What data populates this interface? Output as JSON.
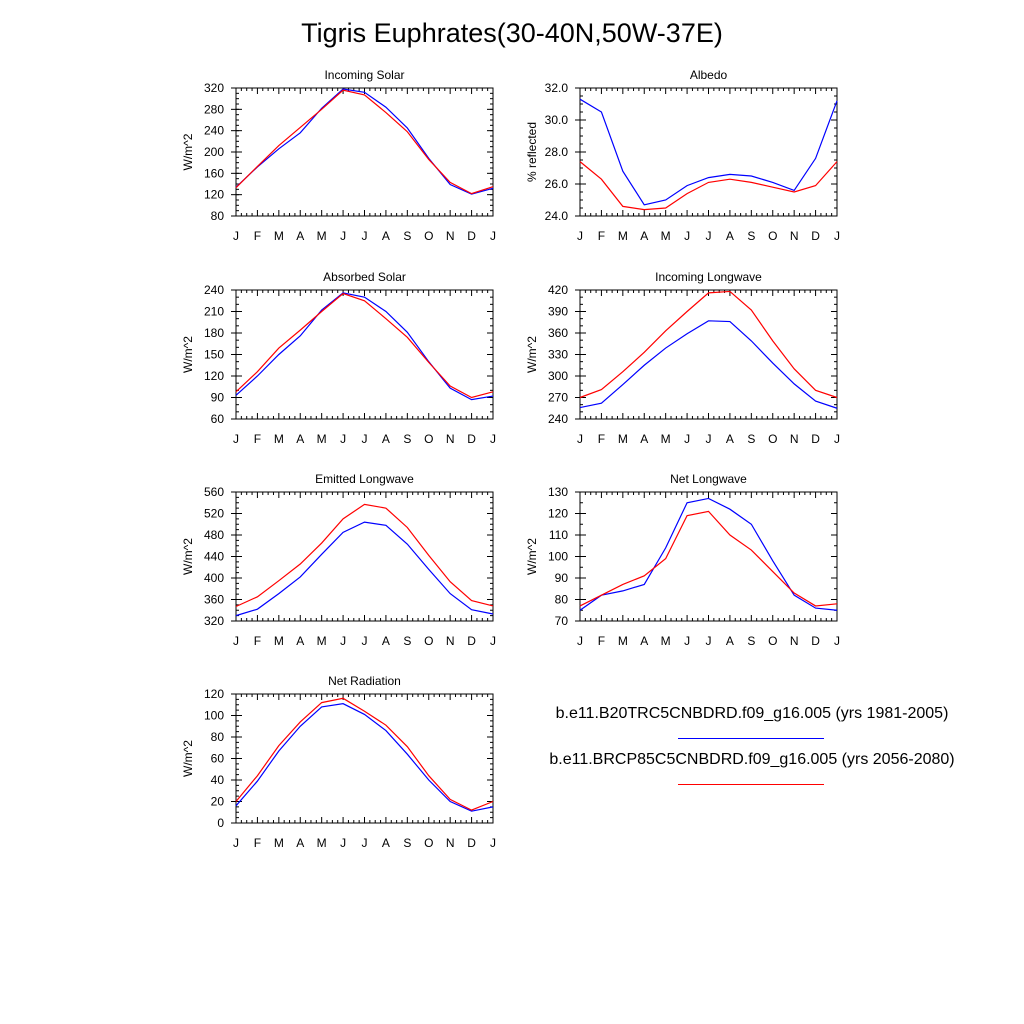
{
  "title": "Tigris Euphrates(30-40N,50W-37E)",
  "months": [
    "J",
    "F",
    "M",
    "A",
    "M",
    "J",
    "J",
    "A",
    "S",
    "O",
    "N",
    "D",
    "J"
  ],
  "legend": [
    {
      "label": "b.e11.B20TRC5CNBDRD.f09_g16.005 (yrs 1981-2005)",
      "color": "#0000ff"
    },
    {
      "label": "b.e11.BRCP85C5CNBDRD.f09_g16.005 (yrs 2056-2080)",
      "color": "#ff0000"
    }
  ],
  "chart_data": [
    {
      "type": "line",
      "title": "Incoming Solar",
      "ylabel": "W/m^2",
      "ylim": [
        80,
        320
      ],
      "yticks": [
        80,
        120,
        160,
        200,
        240,
        280,
        320
      ],
      "tick_decimals": 0,
      "minor": [
        10,
        20
      ],
      "series": [
        {
          "color": "#0000ff",
          "values": [
            134,
            172,
            206,
            236,
            282,
            318,
            312,
            284,
            245,
            188,
            139,
            121,
            132
          ]
        },
        {
          "color": "#ff0000",
          "values": [
            133,
            173,
            212,
            246,
            280,
            316,
            307,
            274,
            238,
            186,
            143,
            122,
            135
          ]
        }
      ]
    },
    {
      "type": "line",
      "title": "Albedo",
      "ylabel": "% reflected",
      "ylim": [
        24,
        32
      ],
      "yticks": [
        24,
        26,
        28,
        30,
        32
      ],
      "tick_decimals": 1,
      "minor": [
        0.5,
        1.0
      ],
      "series": [
        {
          "color": "#0000ff",
          "values": [
            31.3,
            30.5,
            26.8,
            24.7,
            25.0,
            25.9,
            26.4,
            26.6,
            26.5,
            26.1,
            25.6,
            27.6,
            31.2
          ]
        },
        {
          "color": "#ff0000",
          "values": [
            27.4,
            26.3,
            24.6,
            24.4,
            24.5,
            25.4,
            26.1,
            26.3,
            26.1,
            25.8,
            25.5,
            25.9,
            27.4
          ]
        }
      ]
    },
    {
      "type": "line",
      "title": "Absorbed Solar",
      "ylabel": "W/m^2",
      "ylim": [
        60,
        240
      ],
      "yticks": [
        60,
        90,
        120,
        150,
        180,
        210,
        240
      ],
      "tick_decimals": 0,
      "minor": [
        10,
        15
      ],
      "series": [
        {
          "color": "#0000ff",
          "values": [
            93,
            120,
            150,
            176,
            212,
            236,
            230,
            210,
            181,
            140,
            103,
            87,
            92
          ]
        },
        {
          "color": "#ff0000",
          "values": [
            98,
            126,
            159,
            184,
            210,
            235,
            225,
            200,
            174,
            139,
            106,
            90,
            98
          ]
        }
      ]
    },
    {
      "type": "line",
      "title": "Incoming Longwave",
      "ylabel": "W/m^2",
      "ylim": [
        240,
        420
      ],
      "yticks": [
        240,
        270,
        300,
        330,
        360,
        390,
        420
      ],
      "tick_decimals": 0,
      "minor": [
        10,
        15
      ],
      "series": [
        {
          "color": "#0000ff",
          "values": [
            256,
            262,
            288,
            315,
            339,
            359,
            377,
            376,
            349,
            318,
            289,
            265,
            255
          ]
        },
        {
          "color": "#ff0000",
          "values": [
            270,
            281,
            306,
            333,
            363,
            390,
            416,
            418,
            392,
            349,
            310,
            280,
            270
          ]
        }
      ]
    },
    {
      "type": "line",
      "title": "Emitted Longwave",
      "ylabel": "W/m^2",
      "ylim": [
        320,
        560
      ],
      "yticks": [
        320,
        360,
        400,
        440,
        480,
        520,
        560
      ],
      "tick_decimals": 0,
      "minor": [
        10,
        20
      ],
      "series": [
        {
          "color": "#0000ff",
          "values": [
            330,
            342,
            371,
            402,
            444,
            485,
            504,
            498,
            463,
            416,
            371,
            341,
            333
          ]
        },
        {
          "color": "#ff0000",
          "values": [
            347,
            365,
            395,
            426,
            465,
            510,
            537,
            530,
            494,
            442,
            393,
            358,
            348
          ]
        }
      ]
    },
    {
      "type": "line",
      "title": "Net Longwave",
      "ylabel": "W/m^2",
      "ylim": [
        70,
        130
      ],
      "yticks": [
        70,
        80,
        90,
        100,
        110,
        120,
        130
      ],
      "tick_decimals": 0,
      "minor": [
        5,
        5
      ],
      "series": [
        {
          "color": "#0000ff",
          "values": [
            75,
            82,
            84,
            87,
            104,
            125,
            127,
            122,
            115,
            98,
            82,
            76,
            75
          ]
        },
        {
          "color": "#ff0000",
          "values": [
            77,
            82,
            87,
            91,
            99,
            119,
            121,
            110,
            103,
            93,
            83,
            77,
            78
          ]
        }
      ]
    },
    {
      "type": "line",
      "title": "Net Radiation",
      "ylabel": "W/m^2",
      "ylim": [
        0,
        120
      ],
      "yticks": [
        0,
        20,
        40,
        60,
        80,
        100,
        120
      ],
      "tick_decimals": 0,
      "minor": [
        5,
        10
      ],
      "series": [
        {
          "color": "#0000ff",
          "values": [
            16,
            39,
            67,
            90,
            108,
            111,
            101,
            86,
            64,
            40,
            20,
            11,
            15
          ]
        },
        {
          "color": "#ff0000",
          "values": [
            20,
            44,
            72,
            94,
            112,
            116,
            104,
            91,
            71,
            44,
            22,
            12,
            20
          ]
        }
      ]
    }
  ]
}
